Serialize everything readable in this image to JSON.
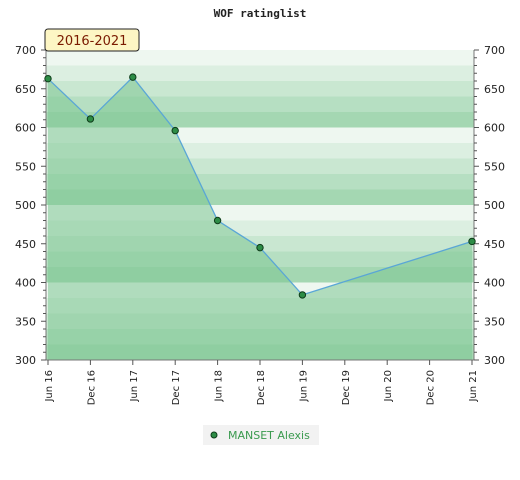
{
  "chart_data": {
    "type": "area",
    "title": "WOF ratinglist",
    "period_label": "2016-2021",
    "x": [
      "Jun 16",
      "Dec 16",
      "Jun 17",
      "Dec 17",
      "Jun 18",
      "Dec 18",
      "Jun 19",
      "Dec 19",
      "Jun 20",
      "Dec 20",
      "Jun 21"
    ],
    "series": [
      {
        "name": "MANSET Alexis",
        "points": [
          {
            "x": "Jun 16",
            "y": 663
          },
          {
            "x": "Dec 16",
            "y": 611
          },
          {
            "x": "Jun 17",
            "y": 665
          },
          {
            "x": "Dec 17",
            "y": 596
          },
          {
            "x": "Jun 18",
            "y": 480
          },
          {
            "x": "Dec 18",
            "y": 445
          },
          {
            "x": "Jun 19",
            "y": 384
          },
          {
            "x": "Jun 21",
            "y": 453
          }
        ]
      }
    ],
    "ylim": [
      300,
      700
    ],
    "y_ticks": [
      300,
      350,
      400,
      450,
      500,
      550,
      600,
      650,
      700
    ],
    "y_axis_sides": "left and right",
    "grid": true,
    "legend_position": "bottom",
    "colors": {
      "line": "#5aa6d6",
      "marker": "#2d8c46",
      "fill": "#7dc694",
      "band_strong": "#b6dfc2",
      "band_light": "#eef7f0",
      "badge_bg": "#fdf6c4",
      "badge_text": "#7a1a00",
      "legend_text": "#3a9a4e"
    }
  }
}
